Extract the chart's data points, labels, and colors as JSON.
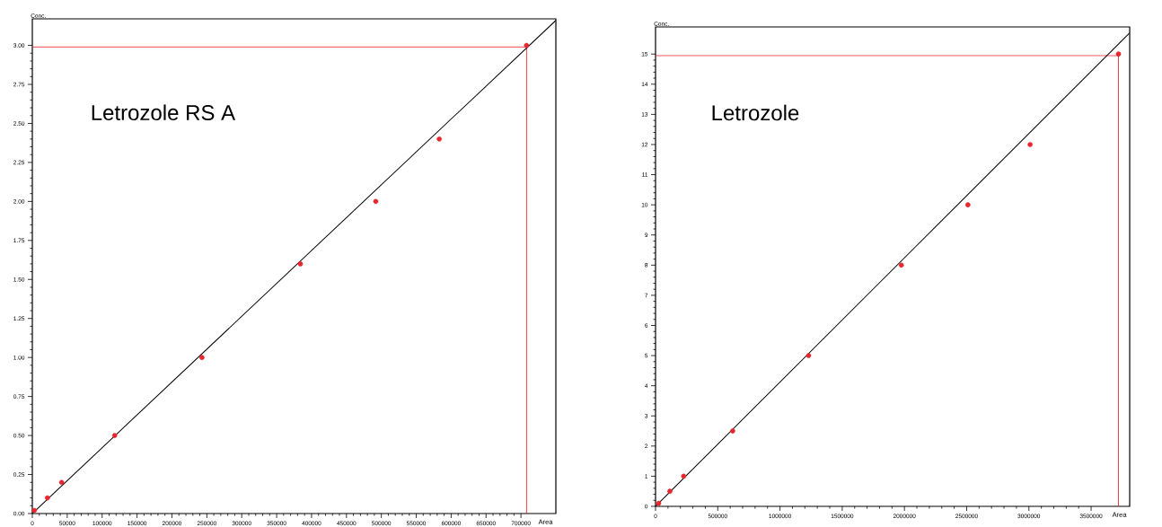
{
  "chart_data": [
    {
      "type": "scatter",
      "title": "Letrozole RS A",
      "xlabel": "Area",
      "ylabel": "Conc.",
      "series": [
        {
          "marker": "circle",
          "color": "#e8262e",
          "x": [
            3000,
            21600,
            42000,
            118000,
            243000,
            384000,
            492000,
            583000,
            708000
          ],
          "values": [
            0.02,
            0.1,
            0.2,
            0.5,
            1.0,
            1.6,
            2.0,
            2.4,
            3.0
          ]
        },
        {
          "type": "line",
          "marker": "none",
          "color": "#000000",
          "x": [
            0,
            750000
          ],
          "values": [
            0,
            3.16
          ]
        }
      ],
      "xlim": [
        0,
        750000
      ],
      "ylim": [
        0,
        3.17
      ],
      "xticks": [
        0,
        50000,
        100000,
        150000,
        200000,
        250000,
        300000,
        350000,
        400000,
        450000,
        500000,
        550000,
        600000,
        650000,
        700000
      ],
      "yticks": [
        {
          "value": 0,
          "label": "0.00"
        },
        0.25,
        {
          "value": 0.5,
          "label": "0.50"
        },
        0.75,
        {
          "value": 1,
          "label": "1.00"
        },
        1.25,
        {
          "value": 1.5,
          "label": "1.50"
        },
        1.75,
        {
          "value": 2,
          "label": "2.00"
        },
        2.25,
        {
          "value": 2.5,
          "label": "2.50"
        },
        2.75,
        {
          "value": 3,
          "label": "3.00"
        }
      ],
      "ref_lines": [
        {
          "axis": "y",
          "value": 2.99,
          "color": "#e8262e"
        },
        {
          "axis": "x",
          "value": 708000,
          "color": "#e8262e"
        }
      ],
      "grid": false
    },
    {
      "type": "scatter",
      "title": "Letrozole",
      "xlabel": "Area",
      "ylabel": "Conc.",
      "series": [
        {
          "marker": "circle",
          "color": "#e8262e",
          "x": [
            25000,
            115000,
            226000,
            620000,
            1230000,
            1975000,
            2510000,
            3010000,
            3720000
          ],
          "values": [
            0.1,
            0.5,
            1,
            2.5,
            5,
            8,
            10,
            12,
            15
          ]
        },
        {
          "type": "line",
          "marker": "none",
          "color": "#000000",
          "x": [
            0,
            3810000
          ],
          "values": [
            0,
            15.7
          ]
        }
      ],
      "xlim": [
        0,
        3810000
      ],
      "ylim": [
        0,
        15.9
      ],
      "xticks": [
        0,
        500000,
        1000000,
        1500000,
        2000000,
        2500000,
        3000000,
        3500000
      ],
      "yticks": [
        0,
        1,
        2,
        3,
        4,
        5,
        6,
        7,
        8,
        9,
        10,
        11,
        12,
        13,
        14,
        15
      ],
      "ref_lines": [
        {
          "axis": "y",
          "value": 14.95,
          "color": "#e8262e"
        },
        {
          "axis": "x",
          "value": 3720000,
          "color": "#e8262e"
        }
      ],
      "grid": false
    }
  ]
}
